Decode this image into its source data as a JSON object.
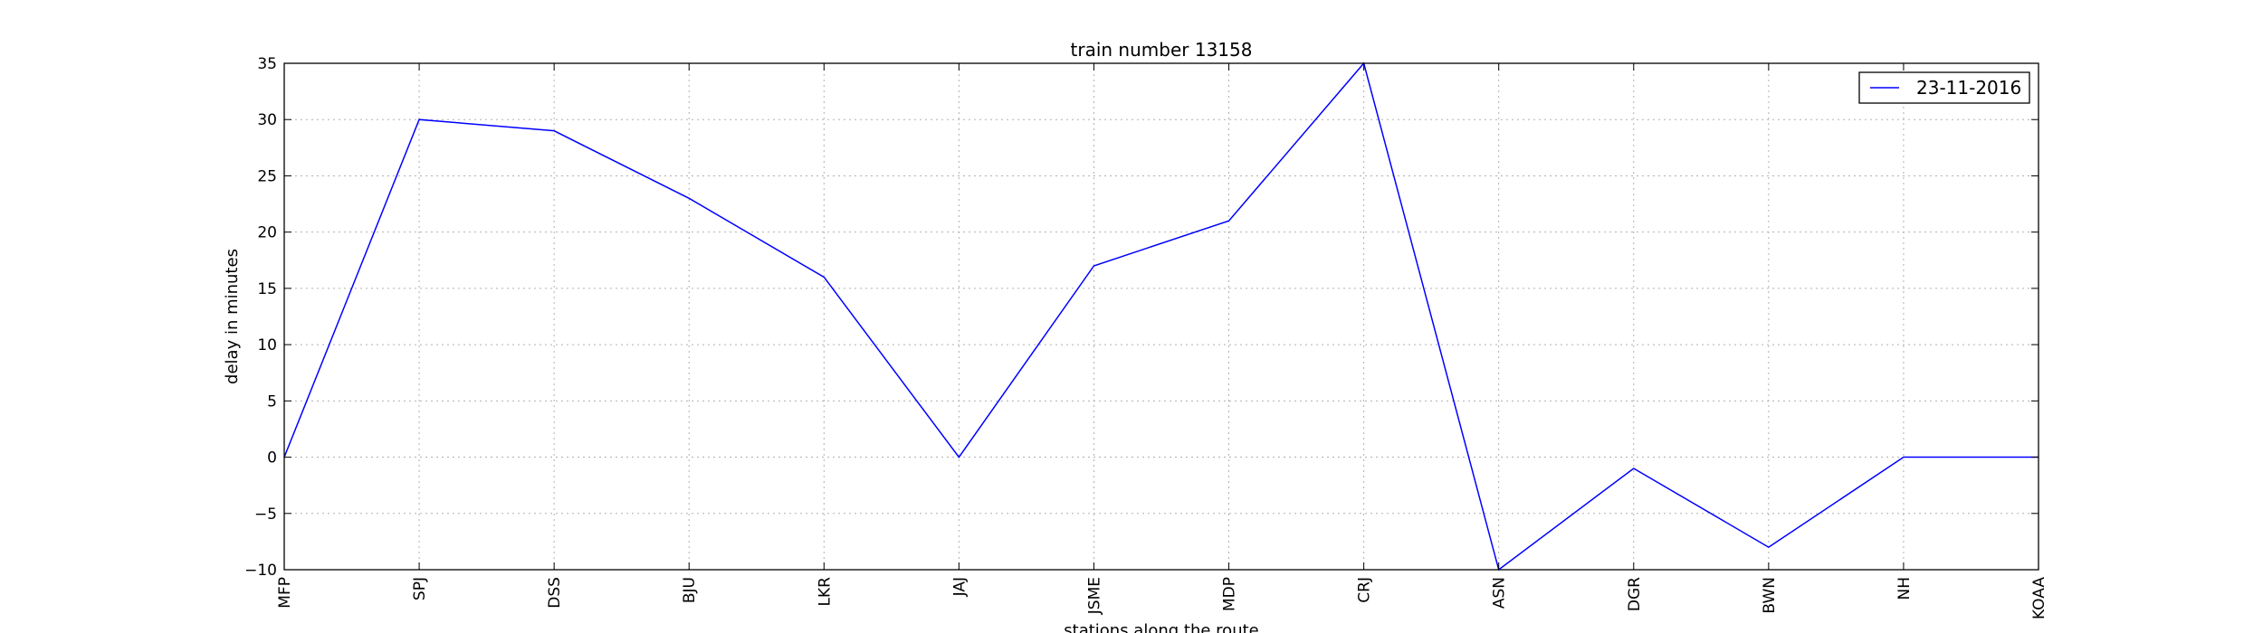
{
  "chart_data": {
    "type": "line",
    "title": "train number 13158",
    "xlabel": "stations along the route",
    "ylabel": "delay in minutes",
    "categories": [
      "MFP",
      "SPJ",
      "DSS",
      "BJU",
      "LKR",
      "JAJ",
      "JSME",
      "MDP",
      "CRJ",
      "ASN",
      "DGR",
      "BWN",
      "NH",
      "KOAA"
    ],
    "series": [
      {
        "name": "23-11-2016",
        "color": "#0000ff",
        "values": [
          0,
          30,
          29,
          23,
          16,
          0,
          17,
          21,
          35,
          -10,
          -1,
          -8,
          0,
          0
        ]
      }
    ],
    "ylim": [
      -10,
      35
    ],
    "yticks": [
      -10,
      -5,
      0,
      5,
      10,
      15,
      20,
      25,
      30,
      35
    ],
    "ytick_labels": [
      "−10",
      "−5",
      "0",
      "5",
      "10",
      "15",
      "20",
      "25",
      "30",
      "35"
    ],
    "grid": true,
    "legend_position": "top-right"
  }
}
